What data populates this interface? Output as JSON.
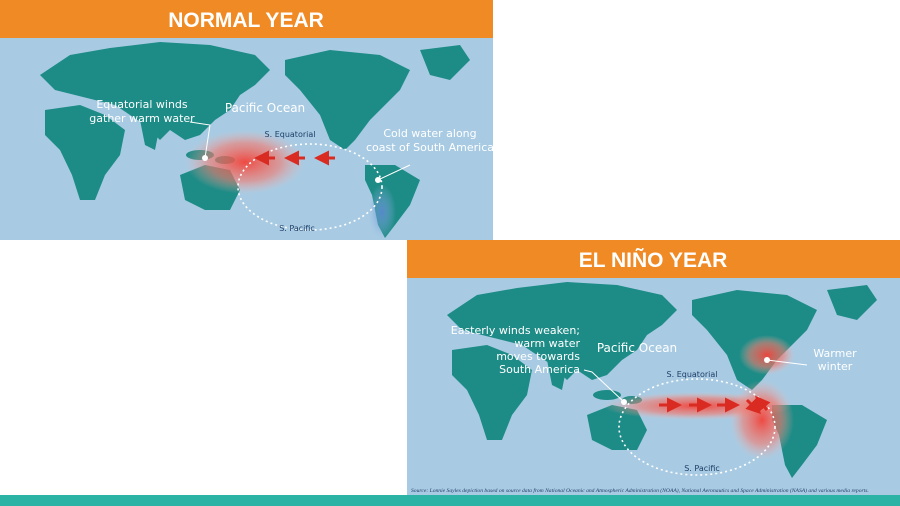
{
  "panels": [
    {
      "title": "NORMAL YEAR",
      "ocean_label": "Pacific Ocean",
      "callouts": [
        {
          "lines": [
            "Equatorial winds",
            "gather warm water"
          ]
        },
        {
          "lines": [
            "Cold water along",
            "coast of South America"
          ]
        }
      ],
      "currents": [
        "S. Equatorial",
        "S. Pacific"
      ]
    },
    {
      "title": "EL NIÑO YEAR",
      "ocean_label": "Pacific Ocean",
      "callouts": [
        {
          "lines": [
            "Easterly winds weaken;",
            "warm water",
            "moves towards",
            "South America"
          ]
        },
        {
          "lines": [
            "Warmer",
            "winter"
          ]
        }
      ],
      "currents": [
        "S. Equatorial",
        "S. Pacific"
      ],
      "source": "Source: Lonnie Sayles depiction based on source data from National Oceanic and Atmospheric Administration (NOAA), National Aeronautics and Space Administration (NASA) and various media reports."
    }
  ]
}
